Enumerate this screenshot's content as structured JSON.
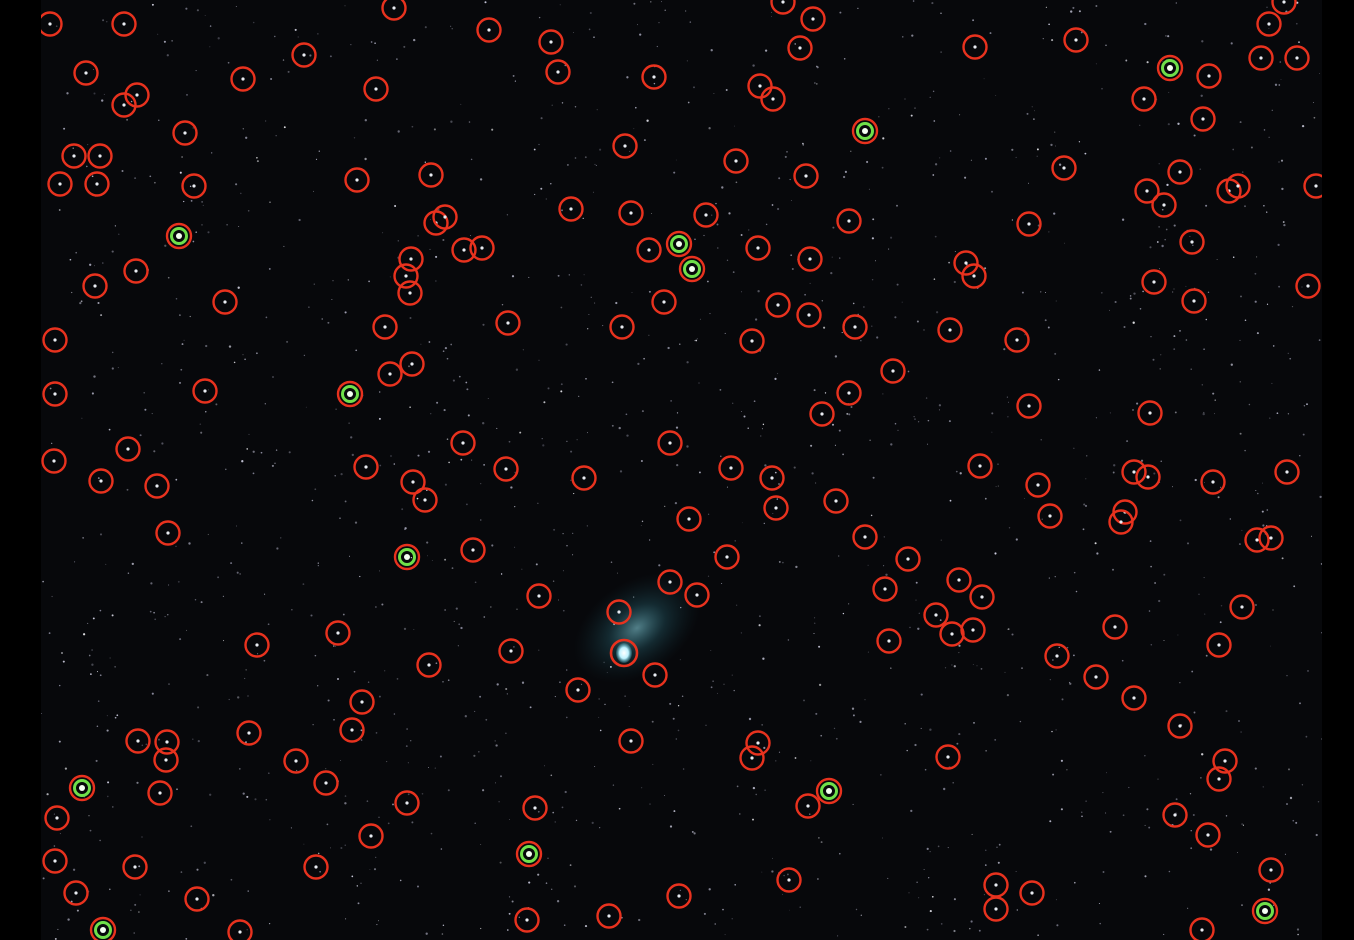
{
  "image": {
    "subject": "starfield-with-comet",
    "marker_colors": {
      "catalog_star": "#e8321e",
      "reference_star": "#6fe04a",
      "comet": "#e8321e"
    },
    "coma_color": "#6fc6d8"
  }
}
